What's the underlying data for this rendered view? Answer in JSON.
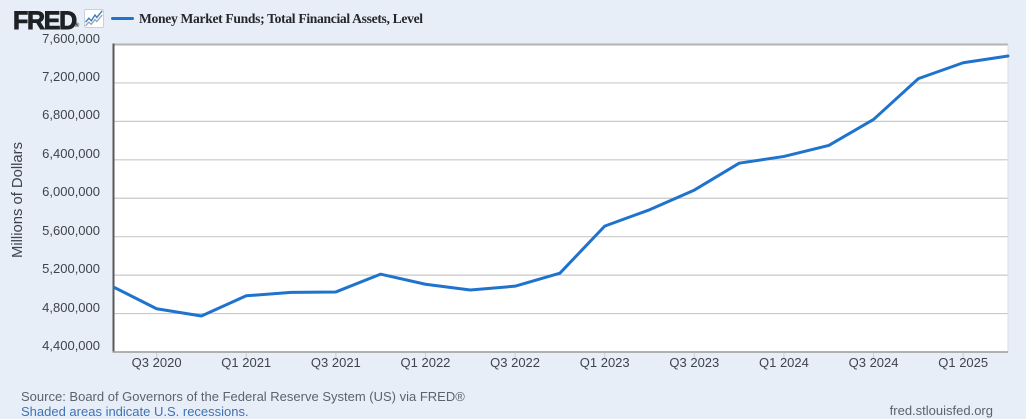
{
  "header": {
    "logo_text": "FRED",
    "registered_mark": "®",
    "legend_label": "Money Market Funds; Total Financial Assets, Level"
  },
  "chart_data": {
    "type": "line",
    "title": "Money Market Funds; Total Financial Assets, Level",
    "ylabel": "Millions of Dollars",
    "xlabel": "",
    "x": [
      "2020 Q2",
      "2020 Q3",
      "2020 Q4",
      "2021 Q1",
      "2021 Q2",
      "2021 Q3",
      "2021 Q4",
      "2022 Q1",
      "2022 Q2",
      "2022 Q3",
      "2022 Q4",
      "2023 Q1",
      "2023 Q2",
      "2023 Q3",
      "2023 Q4",
      "2024 Q1",
      "2024 Q2",
      "2024 Q3",
      "2024 Q4",
      "2025 Q1",
      "2025 Q2"
    ],
    "values": [
      5085000,
      4850000,
      4775000,
      4985000,
      5020000,
      5025000,
      5210000,
      5105000,
      5045000,
      5085000,
      5220000,
      5710000,
      5880000,
      6085000,
      6365000,
      6435000,
      6550000,
      6820000,
      7245000,
      7410000,
      7480000
    ],
    "x_tick_labels": [
      "Q3 2020",
      "Q1 2021",
      "Q3 2021",
      "Q1 2022",
      "Q3 2022",
      "Q1 2023",
      "Q3 2023",
      "Q1 2024",
      "Q3 2024",
      "Q1 2025"
    ],
    "x_tick_indices": [
      1,
      3,
      5,
      7,
      9,
      11,
      13,
      15,
      17,
      19
    ],
    "y_tick_labels": [
      "7,600,000",
      "7,200,000",
      "6,800,000",
      "6,400,000",
      "6,000,000",
      "5,600,000",
      "5,200,000",
      "4,800,000",
      "4,400,000"
    ],
    "ylim": [
      4400000,
      7600000
    ],
    "y_step": 400000,
    "grid": true,
    "legend_position": "top-left",
    "colors": {
      "line": "#1f73cd",
      "plot_background": "#ffffff",
      "page_background": "#e7eef7",
      "gridline": "#c9c9c9",
      "axis_left": "#58595b",
      "axis_bottom": "#9a9a9a",
      "border_top": "#b3b3b3",
      "border_right": "#dadde2",
      "tick": "#cccccc"
    }
  },
  "footer": {
    "source_text": "Source: Board of Governors of the Federal Reserve System (US) via FRED®",
    "recession_note": "Shaded areas indicate U.S. recessions.",
    "site_url": "fred.stlouisfed.org"
  }
}
